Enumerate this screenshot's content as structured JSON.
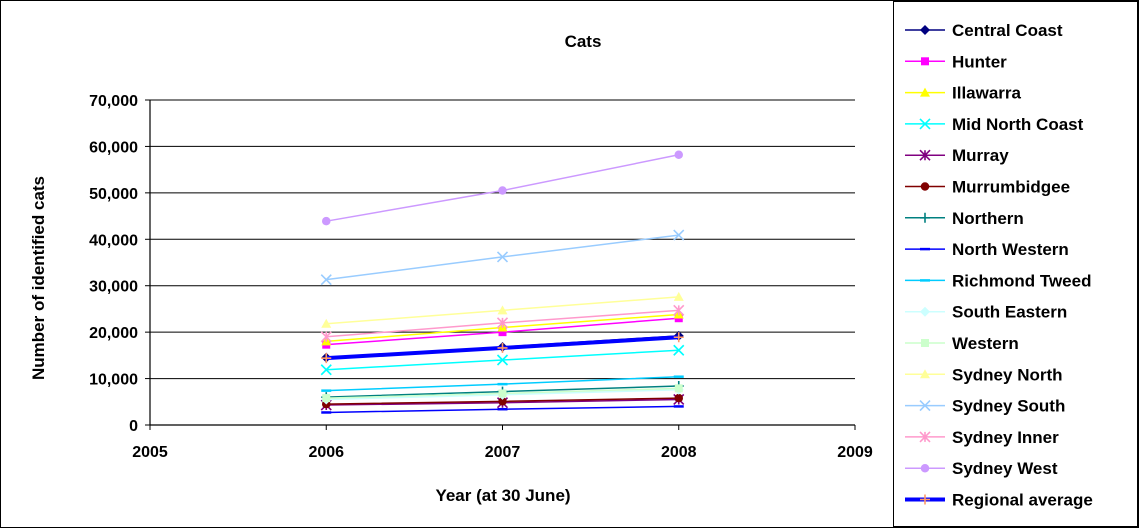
{
  "chart_data": {
    "type": "line",
    "title": "Cats",
    "xlabel": "Year (at 30 June)",
    "ylabel": "Number of identified cats",
    "x_ticks": [
      "2005",
      "2006",
      "2007",
      "2008",
      "2009"
    ],
    "y_ticks": [
      "0",
      "10,000",
      "20,000",
      "30,000",
      "40,000",
      "50,000",
      "60,000",
      "70,000"
    ],
    "xlim": [
      2005,
      2009
    ],
    "ylim": [
      0,
      70000
    ],
    "grid": "horizontal",
    "legend_position": "right",
    "x": [
      2006,
      2007,
      2008
    ],
    "series": [
      {
        "name": "Central Coast",
        "values": [
          14500,
          16800,
          19200
        ],
        "color": "#000080",
        "marker": "diamond"
      },
      {
        "name": "Hunter",
        "values": [
          17300,
          20000,
          23000
        ],
        "color": "#ff00ff",
        "marker": "square"
      },
      {
        "name": "Illawarra",
        "values": [
          18000,
          21000,
          23800
        ],
        "color": "#ffff00",
        "marker": "triangle"
      },
      {
        "name": "Mid North Coast",
        "values": [
          11900,
          14000,
          16100
        ],
        "color": "#00ffff",
        "marker": "x"
      },
      {
        "name": "Murray",
        "values": [
          4300,
          4800,
          5500
        ],
        "color": "#800080",
        "marker": "star"
      },
      {
        "name": "Murrumbidgee",
        "values": [
          4500,
          5100,
          5800
        ],
        "color": "#800000",
        "marker": "circle"
      },
      {
        "name": "Northern",
        "values": [
          6000,
          7200,
          8400
        ],
        "color": "#008080",
        "marker": "plus"
      },
      {
        "name": "North Western",
        "values": [
          2700,
          3400,
          4000
        ],
        "color": "#0000ff",
        "marker": "dash"
      },
      {
        "name": "Richmond Tweed",
        "values": [
          7400,
          8800,
          10400
        ],
        "color": "#00ccff",
        "marker": "dash"
      },
      {
        "name": "South Eastern",
        "values": [
          5500,
          6500,
          7600
        ],
        "color": "#ccffff",
        "marker": "diamond"
      },
      {
        "name": "Western",
        "values": [
          5800,
          6800,
          7900
        ],
        "color": "#ccffcc",
        "marker": "square"
      },
      {
        "name": "Sydney North",
        "values": [
          21800,
          24700,
          27600
        ],
        "color": "#ffff99",
        "marker": "triangle"
      },
      {
        "name": "Sydney South",
        "values": [
          31300,
          36200,
          40900
        ],
        "color": "#99ccff",
        "marker": "x"
      },
      {
        "name": "Sydney Inner",
        "values": [
          19000,
          22000,
          24700
        ],
        "color": "#ff99cc",
        "marker": "star"
      },
      {
        "name": "Sydney West",
        "values": [
          43900,
          50500,
          58200
        ],
        "color": "#cc99ff",
        "marker": "circle"
      },
      {
        "name": "Regional average",
        "values": [
          14400,
          16600,
          18900
        ],
        "color": "#0000ff",
        "marker": "plus",
        "bold": true
      }
    ]
  }
}
